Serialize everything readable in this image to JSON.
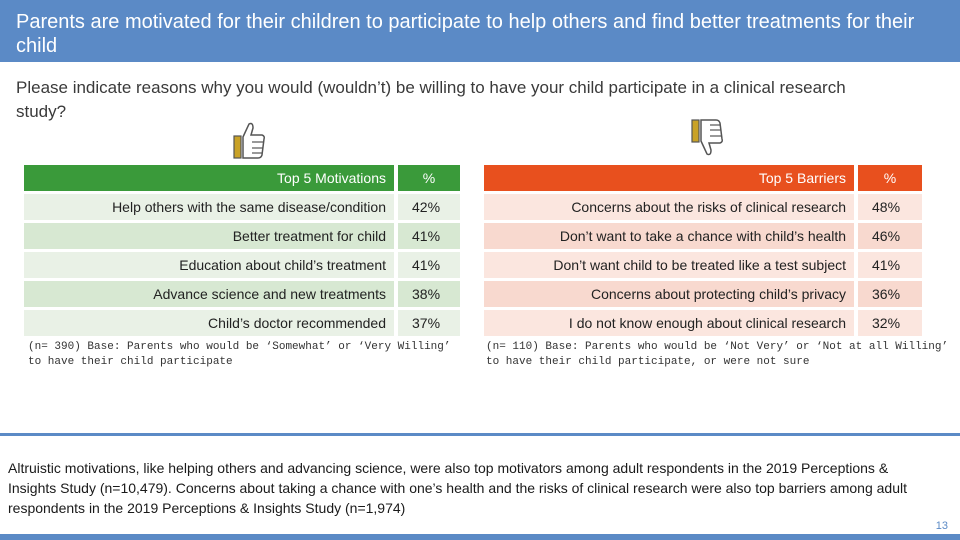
{
  "header": {
    "title": "Parents are motivated for their children to participate to help others and find better treatments for their child"
  },
  "question": "Please indicate reasons why you would (wouldn’t) be willing to have your child participate in a clinical research study?",
  "icons": {
    "thumb_up": "thumbs-up-icon",
    "thumb_down": "thumbs-down-icon"
  },
  "colors": {
    "title_bar": "#5b8ac6",
    "motivations_header": "#3a9a3a",
    "barriers_header": "#e8501e"
  },
  "motivations": {
    "header_label": "Top 5 Motivations",
    "header_pct": "%",
    "rows": [
      {
        "label": "Help others with the same disease/condition",
        "pct": "42%"
      },
      {
        "label": "Better treatment for child",
        "pct": "41%"
      },
      {
        "label": "Education about child’s treatment",
        "pct": "41%"
      },
      {
        "label": "Advance science and new treatments",
        "pct": "38%"
      },
      {
        "label": "Child’s doctor recommended",
        "pct": "37%"
      }
    ],
    "base_note": "(n= 390) Base: Parents who would be ‘Somewhat’ or ‘Very Willing’ to have their child participate"
  },
  "barriers": {
    "header_label": "Top 5 Barriers",
    "header_pct": "%",
    "rows": [
      {
        "label": "Concerns about the risks of clinical research",
        "pct": "48%"
      },
      {
        "label": "Don’t want to take a chance with child’s health",
        "pct": "46%"
      },
      {
        "label": "Don’t want child to be treated like a test subject",
        "pct": "41%"
      },
      {
        "label": "Concerns about protecting child’s privacy",
        "pct": "36%"
      },
      {
        "label": "I do not know enough about clinical research",
        "pct": "32%"
      }
    ],
    "base_note": "(n= 110) Base: Parents who would be ‘Not Very’ or ‘Not at all Willing’ to have their child participate, or were not sure"
  },
  "footnote": "Altruistic motivations, like helping others and advancing science, were also top motivators among adult respondents in the 2019 Perceptions & Insights Study (n=10,479). Concerns about taking a chance with one’s health and the risks of clinical research were also top barriers among adult respondents in the 2019 Perceptions & Insights Study (n=1,974)",
  "page_number": "13"
}
